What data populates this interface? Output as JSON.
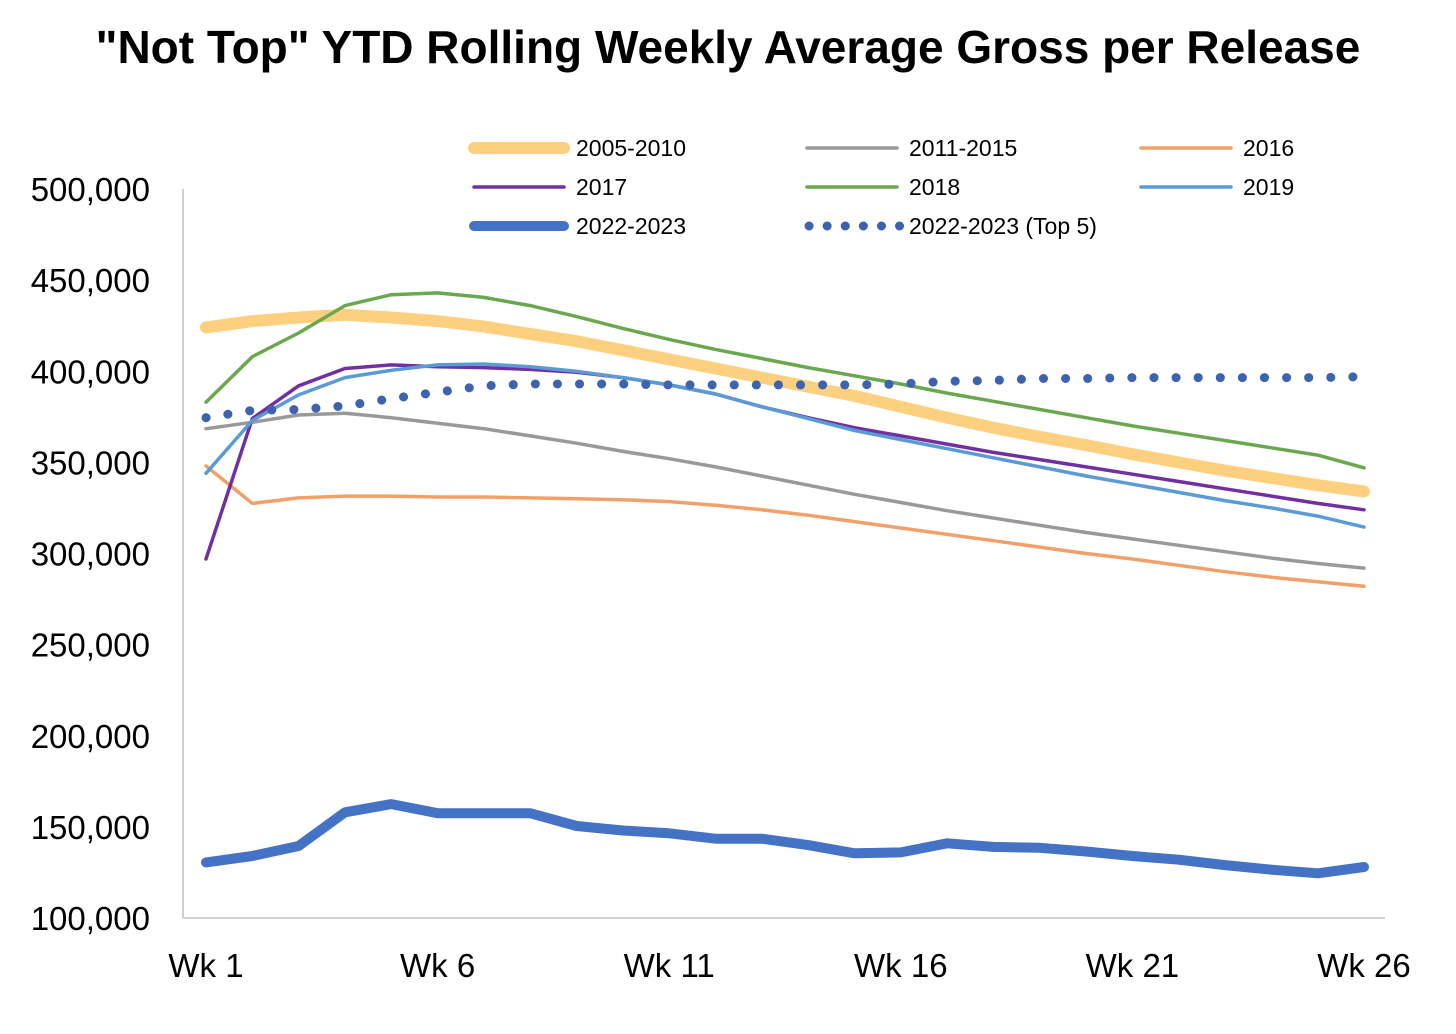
{
  "chart_data": {
    "type": "line",
    "title": "\"Not Top\" YTD Rolling Weekly Average Gross per Release",
    "xlabel": "",
    "ylabel": "",
    "ylim": [
      100000,
      500000
    ],
    "yticks": [
      100000,
      150000,
      200000,
      250000,
      300000,
      350000,
      400000,
      450000,
      500000
    ],
    "ytick_labels": [
      "100,000",
      "150,000",
      "200,000",
      "250,000",
      "300,000",
      "350,000",
      "400,000",
      "450,000",
      "500,000"
    ],
    "x": [
      1,
      2,
      3,
      4,
      5,
      6,
      7,
      8,
      9,
      10,
      11,
      12,
      13,
      14,
      15,
      16,
      17,
      18,
      19,
      20,
      21,
      22,
      23,
      24,
      25,
      26
    ],
    "xticks": [
      1,
      6,
      11,
      16,
      21,
      26
    ],
    "xtick_labels": [
      "Wk 1",
      "Wk 6",
      "Wk 11",
      "Wk 16",
      "Wk 21",
      "Wk 26"
    ],
    "grid": false,
    "legend_position": "top",
    "series": [
      {
        "name": "2005-2010",
        "color": "#FDD07F",
        "style": "thick",
        "values": [
          424000,
          427500,
          429500,
          431000,
          429500,
          427500,
          424500,
          420500,
          416500,
          411500,
          406500,
          401500,
          396500,
          391500,
          386500,
          380500,
          374500,
          369000,
          364000,
          359500,
          354500,
          350000,
          345500,
          341500,
          337500,
          334000
        ]
      },
      {
        "name": "2011-2015",
        "color": "#999999",
        "style": "solid",
        "values": [
          368500,
          372000,
          376000,
          377000,
          374500,
          371500,
          368500,
          364500,
          360500,
          356000,
          352000,
          347500,
          342500,
          337500,
          332500,
          328000,
          323500,
          319500,
          315500,
          311500,
          308000,
          304500,
          301000,
          297500,
          294500,
          292000
        ]
      },
      {
        "name": "2016",
        "color": "#F2A06A",
        "style": "solid",
        "values": [
          348000,
          327500,
          330500,
          331500,
          331500,
          331000,
          331000,
          330500,
          330000,
          329500,
          328500,
          326500,
          324000,
          321000,
          317500,
          314000,
          310500,
          307000,
          303500,
          300000,
          297000,
          293500,
          290000,
          287000,
          284500,
          282000
        ]
      },
      {
        "name": "2017",
        "color": "#7030A0",
        "style": "solid",
        "values": [
          297000,
          374000,
          392000,
          401500,
          403500,
          402500,
          402000,
          401000,
          399500,
          396500,
          392500,
          387500,
          380500,
          374500,
          369000,
          364500,
          360000,
          355500,
          351500,
          347500,
          343500,
          339500,
          335500,
          331500,
          327500,
          324000
        ]
      },
      {
        "name": "2018",
        "color": "#6AA84F",
        "style": "solid",
        "values": [
          383000,
          408000,
          421000,
          436000,
          442000,
          443000,
          440500,
          436000,
          430000,
          423500,
          417500,
          412000,
          407000,
          402000,
          397500,
          393000,
          388000,
          383500,
          379000,
          374500,
          370000,
          366000,
          362000,
          358000,
          354000,
          347000
        ]
      },
      {
        "name": "2019",
        "color": "#5B9BD5",
        "style": "solid",
        "values": [
          344000,
          373000,
          387000,
          396500,
          400500,
          403500,
          404000,
          402500,
          400000,
          396500,
          392500,
          387500,
          380500,
          374000,
          367500,
          362500,
          357500,
          352500,
          347500,
          342500,
          338000,
          333500,
          329000,
          325000,
          320500,
          314500
        ]
      },
      {
        "name": "2022-2023",
        "color": "#4472C4",
        "style": "very-thick",
        "values": [
          130500,
          134000,
          139500,
          158000,
          162500,
          157500,
          157500,
          157500,
          150500,
          148000,
          146500,
          143500,
          143500,
          140000,
          135500,
          136000,
          141000,
          139000,
          138500,
          136500,
          134000,
          132000,
          129000,
          126500,
          124500,
          128000
        ]
      },
      {
        "name": "2022-2023 (Top 5)",
        "color": "#3E63AE",
        "style": "dotted",
        "values": [
          374500,
          378500,
          379000,
          381000,
          385000,
          388500,
          392000,
          393000,
          393000,
          393000,
          392500,
          392500,
          392500,
          392500,
          392500,
          393000,
          394500,
          395000,
          396000,
          396000,
          396500,
          396500,
          396500,
          396500,
          396500,
          397000
        ]
      }
    ]
  }
}
